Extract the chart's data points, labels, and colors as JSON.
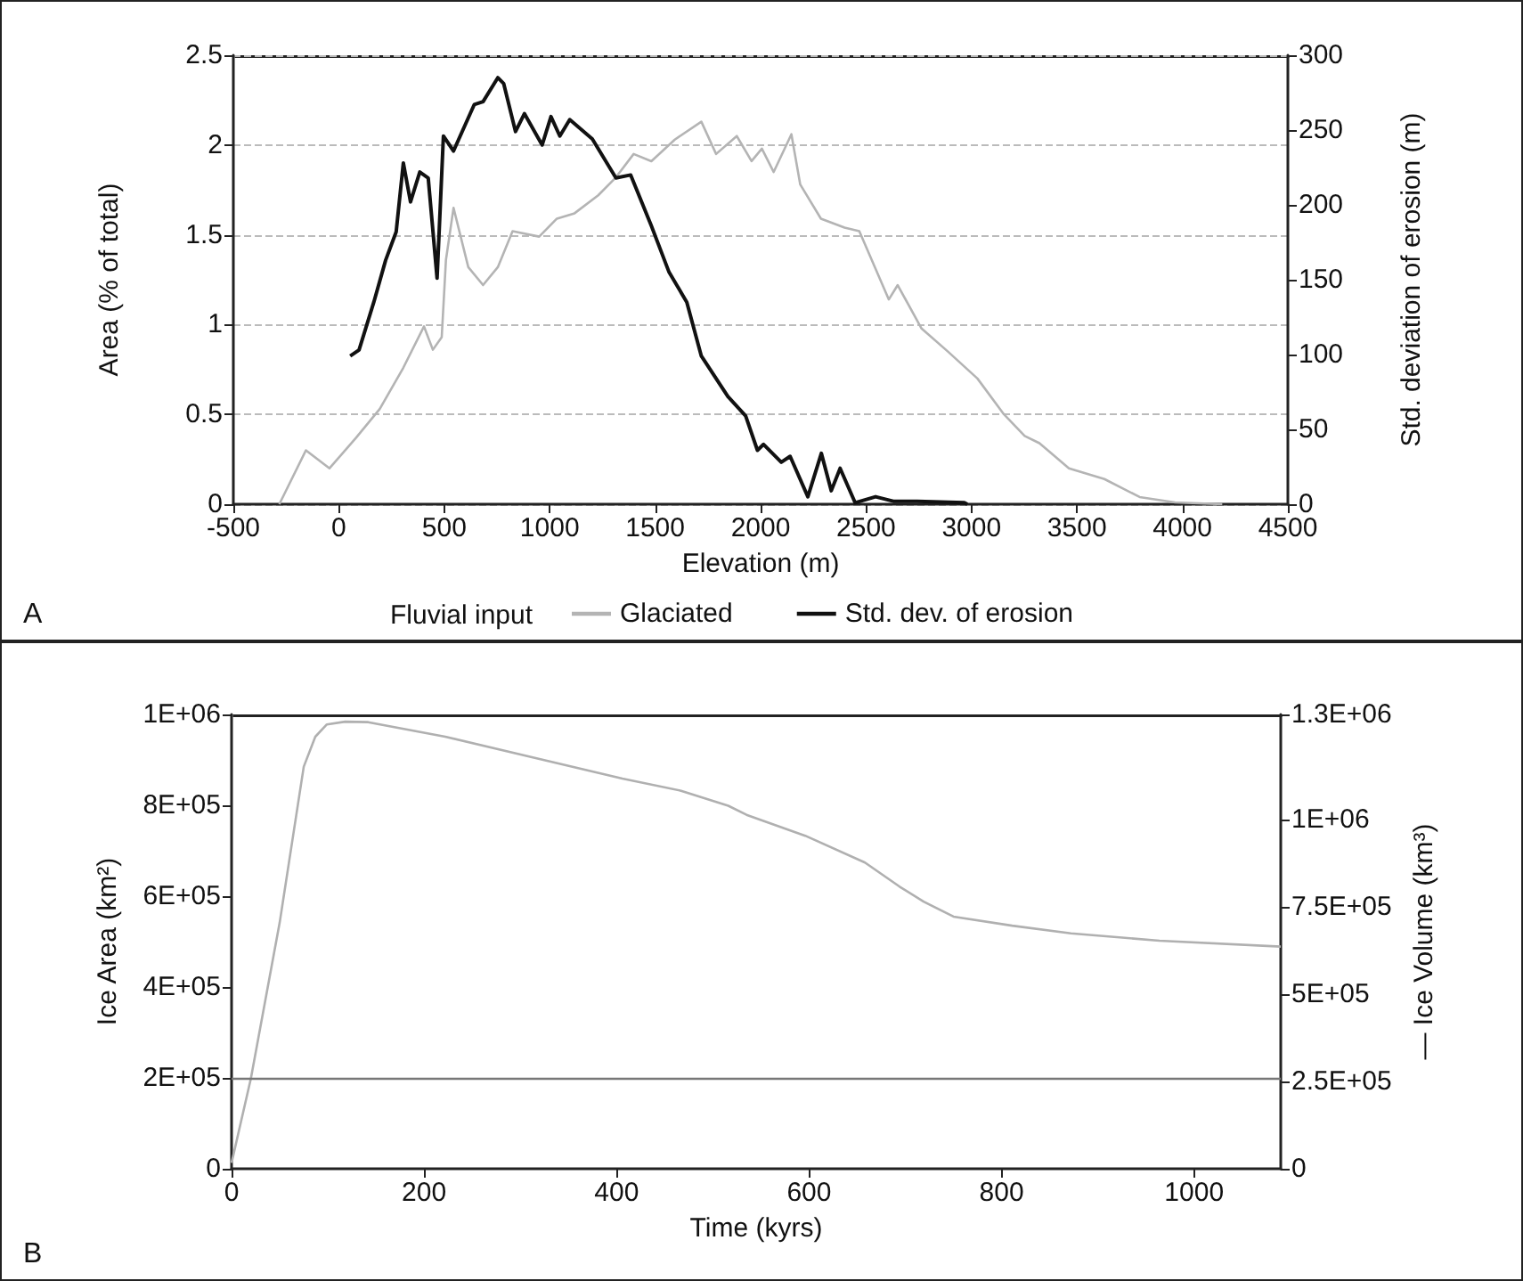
{
  "chart_data": [
    {
      "type": "line",
      "xlabel": "Elevation (m)",
      "ylabel": "Area (% of total)",
      "y2label": "Std. deviation of erosion (m)",
      "xlim": [
        -500,
        4500
      ],
      "xticks": [
        -500,
        0,
        500,
        1000,
        1500,
        2000,
        2500,
        3000,
        3500,
        4000,
        4500
      ],
      "ylim": [
        0,
        2.5
      ],
      "yticks": [
        0,
        0.5,
        1,
        1.5,
        2,
        2.5
      ],
      "y2lim": [
        0,
        300
      ],
      "y2ticks": [
        0,
        50,
        100,
        150,
        200,
        250,
        300
      ],
      "grid": "y",
      "legend": "bottom",
      "annotations": [
        "A",
        "Fluvial input"
      ],
      "series": [
        {
          "name": "Glaciated",
          "color": "#b4b4b4",
          "x": [
            -282,
            -156,
            -44,
            82,
            194,
            306,
            404,
            446,
            488,
            508,
            544,
            614,
            684,
            754,
            824,
            950,
            1034,
            1118,
            1230,
            1314,
            1398,
            1482,
            1593,
            1719,
            1789,
            1887,
            1957,
            2006,
            2062,
            2146,
            2188,
            2286,
            2398,
            2468,
            2608,
            2650,
            2762,
            2888,
            3028,
            3154,
            3252,
            3322,
            3462,
            3630,
            3797,
            3965,
            4189
          ],
          "values": [
            0,
            0.3,
            0.2,
            0.37,
            0.53,
            0.76,
            0.99,
            0.86,
            0.93,
            1.36,
            1.65,
            1.32,
            1.22,
            1.32,
            1.52,
            1.49,
            1.59,
            1.62,
            1.72,
            1.82,
            1.95,
            1.91,
            2.03,
            2.13,
            1.95,
            2.05,
            1.91,
            1.98,
            1.85,
            2.06,
            1.78,
            1.59,
            1.54,
            1.52,
            1.14,
            1.22,
            0.98,
            0.85,
            0.7,
            0.5,
            0.38,
            0.34,
            0.2,
            0.14,
            0.04,
            0.01,
            0
          ]
        },
        {
          "name": "Std. dev. of erosion",
          "color": "#111111",
          "axis": "y2",
          "x": [
            54,
            96,
            166,
            222,
            272,
            306,
            340,
            384,
            424,
            466,
            496,
            544,
            642,
            684,
            754,
            782,
            838,
            880,
            964,
            1006,
            1048,
            1095,
            1202,
            1314,
            1384,
            1482,
            1566,
            1650,
            1719,
            1845,
            1929,
            1985,
            2014,
            2098,
            2140,
            2224,
            2288,
            2335,
            2377,
            2448,
            2545,
            2629,
            2742,
            2966,
            2980
          ],
          "values": [
            99,
            103,
            135,
            163,
            182,
            228,
            202,
            222,
            218,
            151,
            246,
            236,
            267,
            269,
            285,
            281,
            249,
            261,
            240,
            259,
            246,
            257,
            244,
            218,
            220,
            186,
            155,
            135,
            99,
            72,
            59,
            36,
            40,
            28,
            32,
            5,
            34,
            9,
            24,
            1,
            5,
            2,
            2,
            1,
            0
          ]
        }
      ]
    },
    {
      "type": "line",
      "xlabel": "Time (kyrs)",
      "ylabel": "Ice Area (km²)",
      "y2label": "— Ice Volume (km³)",
      "xlim": [
        0,
        1090
      ],
      "xticks": [
        0,
        200,
        400,
        600,
        800,
        1000
      ],
      "ylim": [
        0,
        1000000
      ],
      "yticks": [
        {
          "value": 0,
          "label": "0"
        },
        {
          "value": 200000,
          "label": "2E+05"
        },
        {
          "value": 400000,
          "label": "4E+05"
        },
        {
          "value": 600000,
          "label": "6E+05"
        },
        {
          "value": 800000,
          "label": "8E+05"
        },
        {
          "value": 1000000,
          "label": "1E+06"
        }
      ],
      "y2lim": [
        0,
        1300000
      ],
      "y2ticks": [
        {
          "value": 0,
          "label": "0"
        },
        {
          "value": 250000,
          "label": "2.5E+05"
        },
        {
          "value": 500000,
          "label": "5E+05"
        },
        {
          "value": 750000,
          "label": "7.5E+05"
        },
        {
          "value": 1000000,
          "label": "1E+06"
        },
        {
          "value": 1300000,
          "label": "1.3E+06"
        }
      ],
      "grid": false,
      "annotations": [
        "B"
      ],
      "ref_lines": [
        {
          "axis": "y",
          "value": 200000,
          "color": "#777777"
        }
      ],
      "series": [
        {
          "color": "#b0b0b0",
          "x": [
            0,
            20,
            50,
            75,
            87,
            99,
            118,
            142,
            222,
            314,
            406,
            467,
            516,
            535,
            596,
            658,
            694,
            719,
            750,
            811,
            872,
            964,
            1090
          ],
          "values": [
            13000,
            198000,
            542000,
            885000,
            951000,
            978000,
            984000,
            983000,
            951000,
            905000,
            859000,
            832000,
            799000,
            779000,
            733000,
            674000,
            621000,
            588000,
            555000,
            535000,
            518000,
            502000,
            489000
          ]
        }
      ]
    }
  ]
}
